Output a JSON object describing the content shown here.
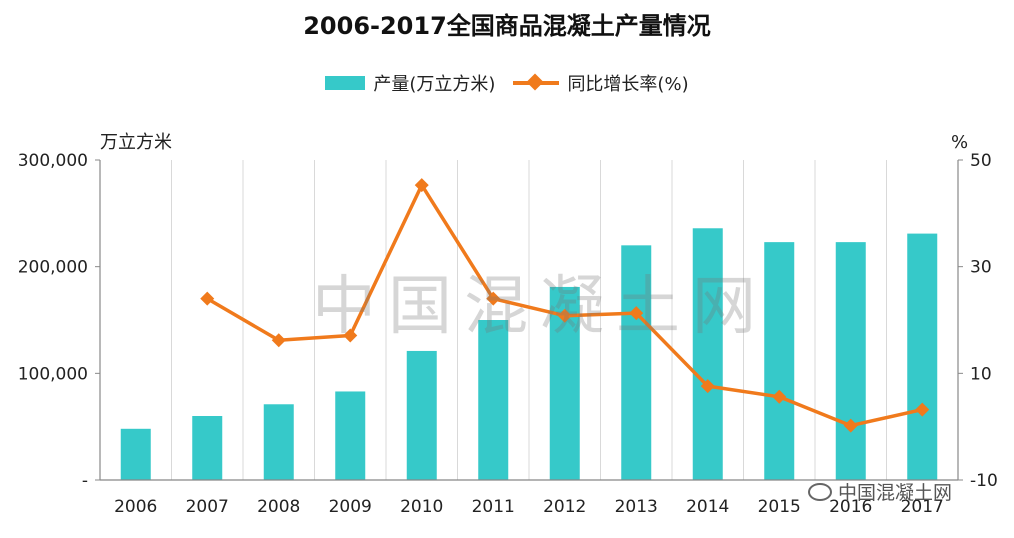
{
  "chart_data": {
    "type": "bar+line",
    "title": "2006-2017全国商品混凝土产量情况",
    "categories": [
      "2006",
      "2007",
      "2008",
      "2009",
      "2010",
      "2011",
      "2012",
      "2013",
      "2014",
      "2015",
      "2016",
      "2017"
    ],
    "series": [
      {
        "name": "产量(万立方米)",
        "type": "bar",
        "axis": "left",
        "color": "#36C9C9",
        "values": [
          48000,
          60000,
          71000,
          83000,
          121000,
          150000,
          181000,
          220000,
          236000,
          223000,
          223000,
          231000
        ]
      },
      {
        "name": "同比增长率(%)",
        "type": "line",
        "axis": "right",
        "color": "#F07A1C",
        "values": [
          null,
          24.0,
          16.2,
          17.1,
          45.3,
          24.0,
          20.8,
          21.3,
          7.6,
          5.6,
          0.2,
          3.2
        ]
      }
    ],
    "y_left": {
      "label": "万立方米",
      "range": [
        0,
        300000
      ],
      "ticks": [
        0,
        100000,
        200000,
        300000
      ],
      "tick_labels": [
        "-",
        "100,000",
        "200,000",
        "300,000"
      ]
    },
    "y_right": {
      "label": "%",
      "range": [
        -10,
        50
      ],
      "ticks": [
        -10,
        10,
        30,
        50
      ],
      "tick_labels": [
        "-10",
        "10",
        "30",
        "50"
      ]
    },
    "grid": "vertical",
    "legend": "top-center"
  },
  "watermarks": {
    "center": "中国混凝土网",
    "corner": "中国混凝土网",
    "corner_icon": "wechat-icon"
  }
}
